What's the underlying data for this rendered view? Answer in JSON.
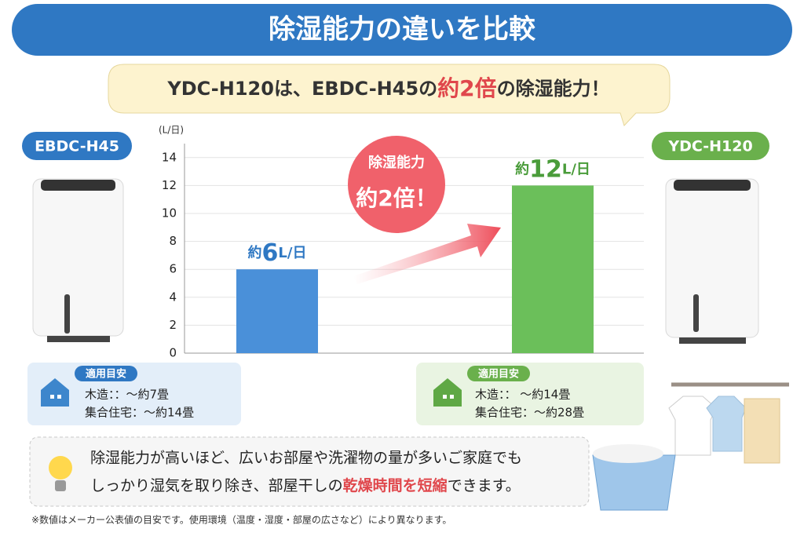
{
  "header": {
    "title": "除湿能力の違いを比較"
  },
  "callout": {
    "parts": [
      "YDC-H120は、EBDC-H45の",
      "約2倍",
      "の除湿能力！"
    ]
  },
  "chart_data": {
    "type": "bar",
    "y_label": "(L/日)",
    "categories": [
      "EBDC-H45",
      "YDC-H120"
    ],
    "values": [
      6,
      12
    ],
    "value_labels": [
      "約6L/日",
      "約12L/日"
    ],
    "colors": [
      "#4a90d9",
      "#6bbf5a"
    ],
    "ylim": [
      0,
      15
    ],
    "yticks": [
      0,
      2,
      4,
      6,
      8,
      10,
      12,
      14
    ],
    "grid": true,
    "annotation": {
      "lines": [
        "除湿能力",
        "約2倍！"
      ]
    }
  },
  "guides": [
    {
      "heading": "適用目安",
      "lines": [
        "木造：：～約7畳",
        "集合住宅：～約14畳"
      ]
    },
    {
      "heading": "適用目安",
      "lines": [
        "木造：： ～約14畳",
        "集合住宅：～約28畳"
      ]
    }
  ],
  "note": {
    "line1": "除湿能力が高いほど、広いお部屋や洗濯物の量が多いご家庭でも",
    "line2": [
      "しっかり湿気を取り除き、部屋干しの",
      "乾燥時間を短縮",
      "できます。"
    ]
  },
  "footnote": "※数値はメーカー公表値の目安です。使用環境（温度・湿度・部屋の広さなど）により異なります。"
}
